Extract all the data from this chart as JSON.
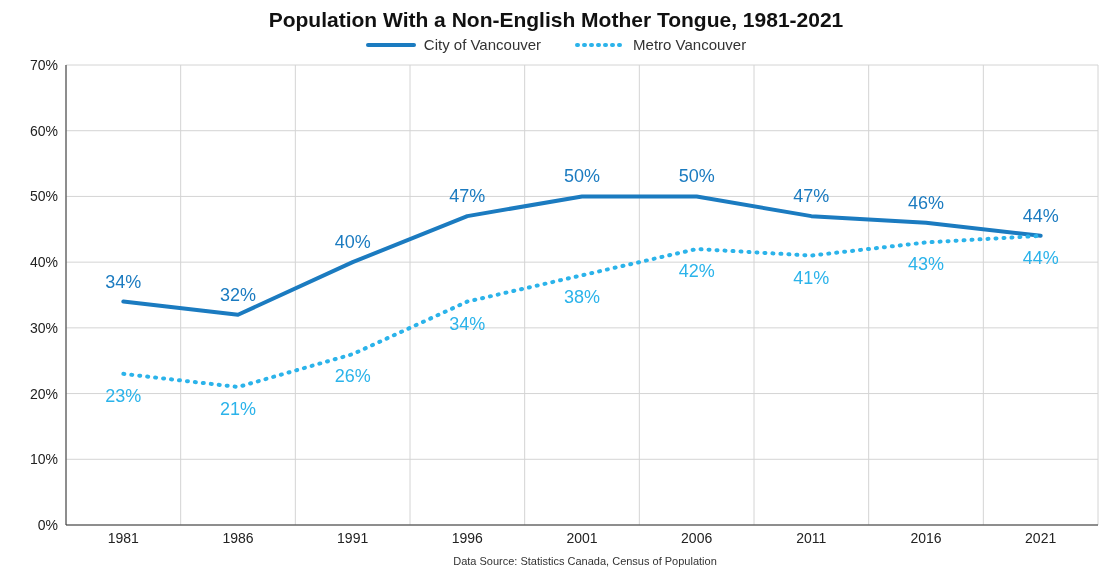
{
  "chart_data": {
    "type": "line",
    "title": "Population With a Non-English Mother Tongue, 1981-2021",
    "categories": [
      "1981",
      "1986",
      "1991",
      "1996",
      "2001",
      "2006",
      "2011",
      "2016",
      "2021"
    ],
    "series": [
      {
        "name": "City of Vancouver",
        "color": "#1b7bc0",
        "line_style": "solid",
        "values": [
          34,
          32,
          40,
          47,
          50,
          50,
          47,
          46,
          44
        ],
        "value_labels": [
          "34%",
          "32%",
          "40%",
          "47%",
          "50%",
          "50%",
          "47%",
          "46%",
          "44%"
        ]
      },
      {
        "name": "Metro Vancouver",
        "color": "#2bb3ea",
        "line_style": "dotted",
        "values": [
          23,
          21,
          26,
          34,
          38,
          42,
          41,
          43,
          44
        ],
        "value_labels": [
          "23%",
          "21%",
          "26%",
          "34%",
          "38%",
          "42%",
          "41%",
          "43%",
          "44%"
        ]
      }
    ],
    "ylim": [
      0,
      70
    ],
    "yticks": [
      {
        "value": 0,
        "label": "0%"
      },
      {
        "value": 10,
        "label": "10%"
      },
      {
        "value": 20,
        "label": "20%"
      },
      {
        "value": 30,
        "label": "30%"
      },
      {
        "value": 40,
        "label": "40%"
      },
      {
        "value": 50,
        "label": "50%"
      },
      {
        "value": 60,
        "label": "60%"
      },
      {
        "value": 70,
        "label": "70%"
      }
    ],
    "grid": true,
    "legend": "top",
    "marker": "none",
    "annotations": [
      "Data Source: Statistics Canada, Census of Population"
    ]
  }
}
